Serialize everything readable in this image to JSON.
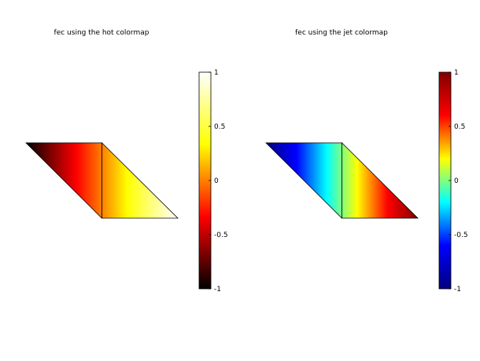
{
  "chart_data": [
    {
      "type": "heatmap",
      "plot": "fec",
      "title": "fec using the hot colormap",
      "colormap": "hot",
      "colormap_stops": [
        "#000000",
        "#ff0000",
        "#ffff00",
        "#ffffff"
      ],
      "xlabel": "",
      "ylabel": "",
      "grid": false,
      "axes_visible": false,
      "mesh": {
        "nodes": [
          [
            0,
            1
          ],
          [
            1,
            1
          ],
          [
            1,
            0
          ],
          [
            2,
            0
          ]
        ],
        "node_values": [
          -1,
          0,
          0,
          1
        ],
        "triangles": [
          [
            0,
            1,
            2
          ],
          [
            1,
            3,
            2
          ]
        ]
      },
      "colorbar": {
        "range": [
          -1,
          1
        ],
        "ticks": [
          -1,
          -0.5,
          0,
          0.5,
          1
        ],
        "tick_labels": [
          "-1",
          "-0.5",
          "0",
          "0.5",
          "1"
        ],
        "placement": "right"
      }
    },
    {
      "type": "heatmap",
      "plot": "fec",
      "title": "fec using the jet colormap",
      "colormap": "jet",
      "colormap_stops": [
        "#000080",
        "#0000ff",
        "#00ffff",
        "#ffff00",
        "#ff0000",
        "#800000"
      ],
      "xlabel": "",
      "ylabel": "",
      "grid": false,
      "axes_visible": false,
      "mesh": {
        "nodes": [
          [
            0,
            1
          ],
          [
            1,
            1
          ],
          [
            1,
            0
          ],
          [
            2,
            0
          ]
        ],
        "node_values": [
          -1,
          0,
          0,
          1
        ],
        "triangles": [
          [
            0,
            1,
            2
          ],
          [
            1,
            3,
            2
          ]
        ]
      },
      "colorbar": {
        "range": [
          -1,
          1
        ],
        "ticks": [
          -1,
          -0.5,
          0,
          0.5,
          1
        ],
        "tick_labels": [
          "-1",
          "-0.5",
          "0",
          "0.5",
          "1"
        ],
        "placement": "right"
      }
    }
  ]
}
